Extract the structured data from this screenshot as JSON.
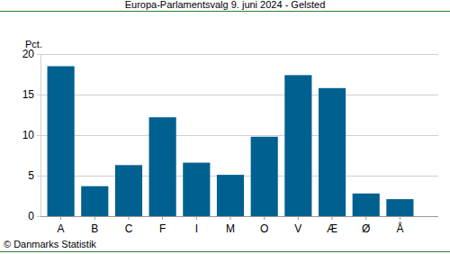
{
  "chart_data": {
    "type": "bar",
    "title": "Europa-Parlamentsvalg 9. juni 2024 - Gelsted",
    "y_label": "Pct.",
    "annotations": [
      "© Danmarks Statistik"
    ],
    "categories": [
      "A",
      "B",
      "C",
      "F",
      "I",
      "M",
      "O",
      "V",
      "Æ",
      "Ø",
      "Å"
    ],
    "values": [
      18.5,
      3.7,
      6.3,
      12.2,
      6.6,
      5.1,
      9.8,
      17.4,
      15.8,
      2.8,
      2.1
    ],
    "color": "#00608f",
    "ylim": [
      0,
      20
    ],
    "yticks": [
      0,
      5,
      10,
      15,
      20
    ],
    "grid": true
  }
}
